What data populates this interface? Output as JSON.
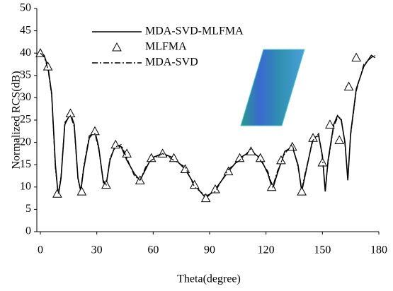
{
  "chart_data": {
    "type": "line",
    "xlabel": "Theta(degree)",
    "ylabel": "Normalized RCS(dB)",
    "xlim": [
      0,
      180
    ],
    "xticks": [
      0,
      30,
      60,
      90,
      120,
      150,
      180
    ],
    "ylim": [
      0,
      50
    ],
    "yticks": [
      0,
      5,
      10,
      15,
      20,
      25,
      30,
      35,
      40,
      45,
      50
    ],
    "series": [
      {
        "name": "MDA-SVD-MLFMA",
        "color": "#000000",
        "style": "solid",
        "x": [
          0,
          2,
          4,
          6,
          8,
          9.5,
          11,
          13,
          16,
          18,
          20,
          21.5,
          23,
          26,
          29,
          31,
          33.5,
          35,
          37,
          40,
          43,
          46,
          50,
          53,
          56,
          59,
          65,
          71,
          77,
          82,
          88,
          93,
          100,
          106,
          112,
          117,
          121,
          123.5,
          126,
          130,
          134,
          137,
          139,
          141,
          145,
          148,
          150,
          151.5,
          153,
          156,
          158,
          160,
          162,
          163.5,
          165,
          168,
          172,
          176,
          178
        ],
        "values": [
          40,
          39.5,
          37,
          31,
          15,
          8,
          12,
          24,
          26.5,
          24,
          12,
          9,
          14,
          21,
          22.5,
          19,
          11,
          10.5,
          16,
          19.5,
          19,
          16,
          13,
          11.5,
          14,
          16.5,
          17.5,
          16.5,
          14,
          10.5,
          7.5,
          9.5,
          13.5,
          16.5,
          18,
          16.5,
          13,
          9.5,
          13,
          18,
          19,
          15,
          9,
          13,
          21,
          21.5,
          17,
          9,
          16,
          24,
          26,
          25,
          20,
          11.5,
          22,
          32,
          37,
          39.5,
          39
        ]
      },
      {
        "name": "MLFMA",
        "color": "#000000",
        "style": "triangle",
        "x": [
          0,
          4,
          9,
          16,
          22,
          29,
          35,
          40,
          46,
          53,
          59,
          65,
          71,
          77,
          82,
          88,
          93,
          100,
          106,
          112,
          117,
          123,
          128,
          134,
          139,
          145,
          150,
          154,
          159,
          164,
          168
        ],
        "values": [
          40,
          37,
          8.5,
          26.5,
          9,
          22.5,
          10.5,
          19.5,
          17.5,
          11.5,
          16.5,
          17.5,
          16.5,
          14,
          10.5,
          7.5,
          9.5,
          13.5,
          16.5,
          18,
          16.5,
          10,
          16,
          19,
          9,
          21,
          15.5,
          24,
          20.5,
          32.5,
          39
        ]
      },
      {
        "name": "MDA-SVD",
        "color": "#000000",
        "style": "dashdot",
        "x": [
          0,
          2,
          4,
          6,
          8,
          9.5,
          11,
          13,
          16,
          18,
          20,
          21.5,
          23,
          26,
          29,
          31,
          33.5,
          35,
          37,
          40,
          43,
          46,
          50,
          53,
          56,
          59,
          65,
          71,
          77,
          82,
          88,
          93,
          100,
          106,
          112,
          117,
          121,
          123.5,
          126,
          130,
          134,
          137,
          139,
          141,
          145,
          148,
          150,
          151.5,
          153,
          156,
          158,
          160,
          162,
          163.5,
          165,
          168,
          172,
          176,
          178
        ],
        "values": [
          40,
          39.2,
          36.5,
          30.5,
          14,
          8.5,
          12.5,
          24.5,
          26,
          23.5,
          11.5,
          9.5,
          14.5,
          21.5,
          22,
          18.5,
          11.5,
          10.5,
          16.5,
          19,
          19.5,
          16.5,
          12.5,
          11.5,
          14.5,
          16,
          17.5,
          16,
          14.5,
          10,
          8,
          9,
          14,
          16,
          18.5,
          16,
          13.5,
          10,
          13.5,
          17.5,
          19.5,
          14.5,
          9.5,
          13.5,
          20.5,
          22,
          16.5,
          9.5,
          15.5,
          23.5,
          25.5,
          25.5,
          19.5,
          12,
          21.5,
          31.5,
          37.5,
          39,
          39.5
        ]
      }
    ]
  }
}
